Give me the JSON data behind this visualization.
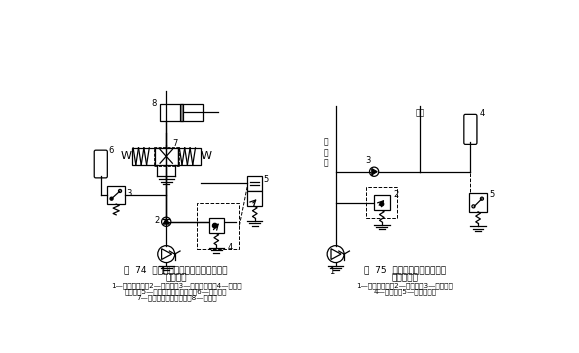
{
  "bg_color": "#ffffff",
  "fig_width": 5.79,
  "fig_height": 3.53,
  "dpi": 100,
  "title74": "图  74  用压力继电器的液压泵的卸荷与",
  "title74_2": "加载回路",
  "caption74_1": "1—定量液压泵；2—单向阀；3—压力继电器；4—先导式",
  "caption74_2": "溢流阀；5—二位二通电磁换向阀；6—蓄能器；",
  "caption74_3": "7—三位四通电磁换向阀；8—液压缸",
  "title75": "图  75  用压力继电器控制顺序",
  "title75_2": "动作的回路",
  "caption75_1": "1—定量液压泵；2—溢流阀；3—单向阀；",
  "caption75_2": "4—蓄能器；5—压力继电器",
  "line_color": "#000000"
}
